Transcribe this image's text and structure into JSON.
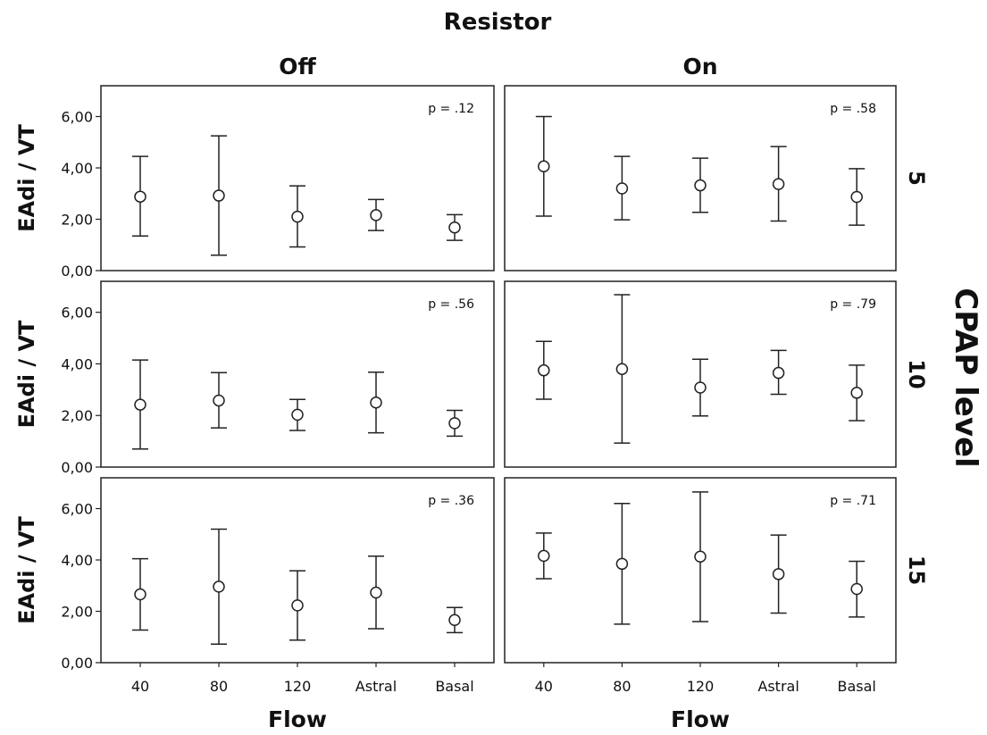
{
  "figure": {
    "title": "Resistor",
    "col_headers": [
      "Off",
      "On"
    ],
    "row_header": "CPAP level",
    "row_labels": [
      "5",
      "10",
      "15"
    ],
    "ylabel": "EAdi / VT",
    "xlabel": "Flow",
    "yticks": [
      "0,00",
      "2,00",
      "4,00",
      "6,00"
    ]
  },
  "chart_data": {
    "type": "scatter",
    "subtype": "error-bar",
    "categories": [
      "40",
      "80",
      "120",
      "Astral",
      "Basal"
    ],
    "ylim": [
      0,
      7.2
    ],
    "grid": false,
    "panels": [
      {
        "row": "5",
        "column": "Off",
        "annotation": "p = .12",
        "mean": [
          2.88,
          2.92,
          2.1,
          2.16,
          1.68
        ],
        "lower": [
          1.35,
          0.6,
          0.92,
          1.56,
          1.18
        ],
        "upper": [
          4.45,
          5.25,
          3.3,
          2.77,
          2.18
        ]
      },
      {
        "row": "5",
        "column": "On",
        "annotation": "p = .58",
        "mean": [
          4.06,
          3.2,
          3.32,
          3.37,
          2.87
        ],
        "lower": [
          2.12,
          1.98,
          2.27,
          1.93,
          1.77
        ],
        "upper": [
          6.0,
          4.45,
          4.38,
          4.83,
          3.97
        ]
      },
      {
        "row": "10",
        "column": "Off",
        "annotation": "p = .56",
        "mean": [
          2.42,
          2.58,
          2.03,
          2.5,
          1.7
        ],
        "lower": [
          0.7,
          1.52,
          1.42,
          1.33,
          1.2
        ],
        "upper": [
          4.15,
          3.66,
          2.62,
          3.68,
          2.2
        ]
      },
      {
        "row": "10",
        "column": "On",
        "annotation": "p = .79",
        "mean": [
          3.75,
          3.8,
          3.08,
          3.65,
          2.88
        ],
        "lower": [
          2.63,
          0.93,
          1.98,
          2.82,
          1.8
        ],
        "upper": [
          4.87,
          6.68,
          4.18,
          4.52,
          3.95
        ]
      },
      {
        "row": "15",
        "column": "Off",
        "annotation": "p = .36",
        "mean": [
          2.66,
          2.96,
          2.23,
          2.73,
          1.66
        ],
        "lower": [
          1.27,
          0.72,
          0.88,
          1.32,
          1.17
        ],
        "upper": [
          4.05,
          5.2,
          3.58,
          4.15,
          2.15
        ]
      },
      {
        "row": "15",
        "column": "On",
        "annotation": "p = .71",
        "mean": [
          4.16,
          3.85,
          4.13,
          3.45,
          2.87
        ],
        "lower": [
          3.27,
          1.5,
          1.6,
          1.93,
          1.78
        ],
        "upper": [
          5.05,
          6.2,
          6.65,
          4.97,
          3.95
        ]
      }
    ]
  }
}
